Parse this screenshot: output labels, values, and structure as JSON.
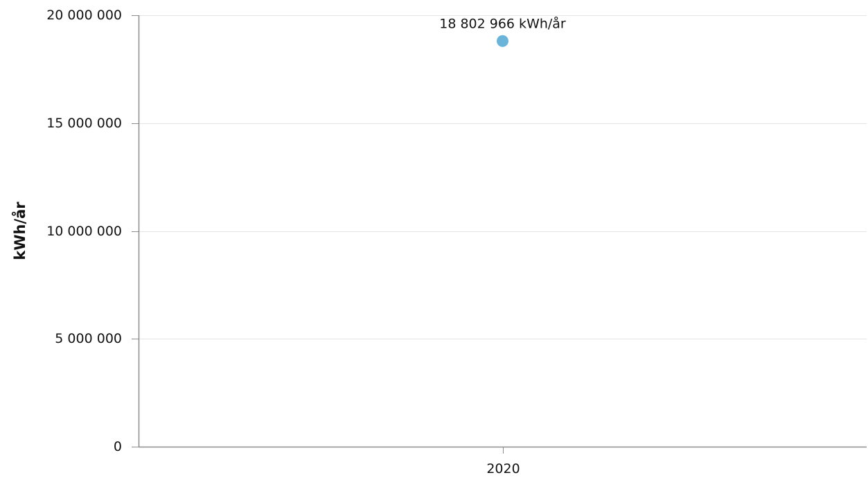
{
  "chart_data": {
    "type": "scatter",
    "title": "",
    "xlabel": "",
    "ylabel": "kWh/år",
    "categories": [
      "2020"
    ],
    "series": [
      {
        "values": [
          18802966
        ]
      }
    ],
    "data_labels": [
      "18 802 966 kWh/år"
    ],
    "ylim": [
      0,
      20000000
    ],
    "yticks": [
      0,
      5000000,
      10000000,
      15000000,
      20000000
    ],
    "ytick_labels": [
      "0",
      "5 000 000",
      "10 000 000",
      "15 000 000",
      "20 000 000"
    ],
    "grid": true,
    "legend": "none",
    "colors": {
      "point": "#6ab4d9",
      "grid": "#e3e3e3",
      "axis": "#8c8c8c",
      "text": "#111111"
    }
  }
}
